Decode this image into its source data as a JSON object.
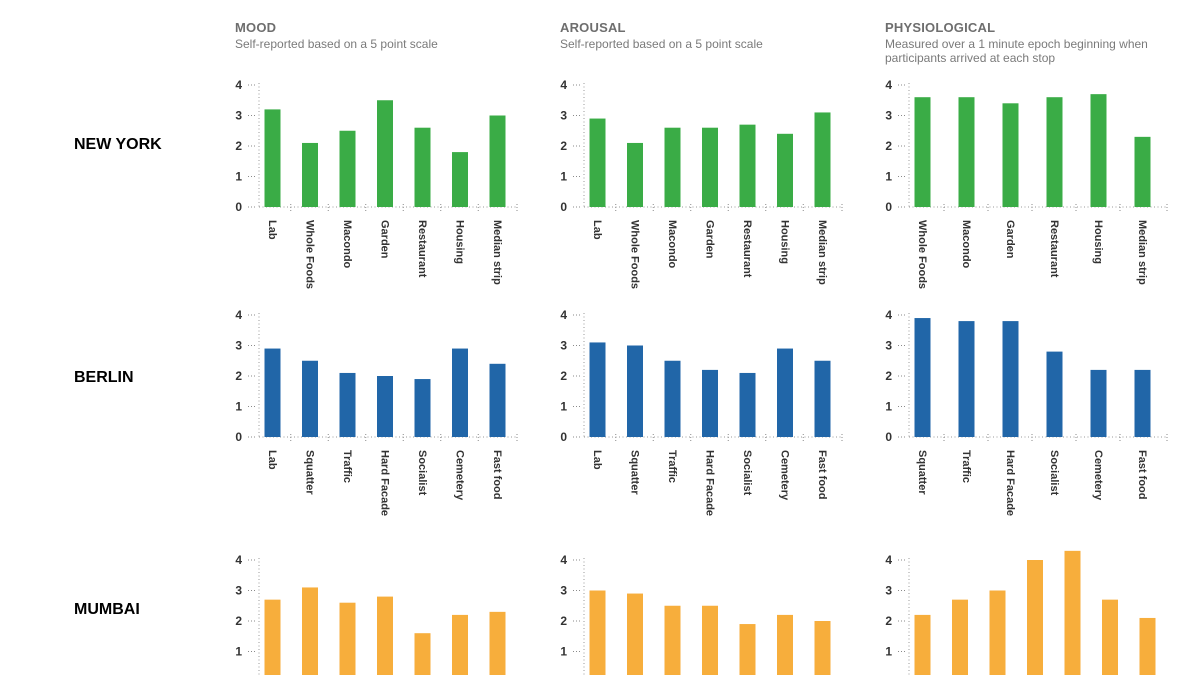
{
  "columns": [
    {
      "title": "MOOD",
      "subtitle": "Self-reported based on a 5 point scale"
    },
    {
      "title": "AROUSAL",
      "subtitle": "Self-reported based on a 5 point scale"
    },
    {
      "title": "PHYSIOLOGICAL",
      "subtitle": "Measured over a 1 minute epoch beginning when participants arrived at each stop"
    }
  ],
  "cities": [
    "NEW YORK",
    "BERLIN",
    "MUMBAI"
  ],
  "colors": {
    "NEW YORK": "#3aac46",
    "BERLIN": "#2166a8",
    "MUMBAI": "#f7ae3c"
  },
  "chart_data": [
    {
      "type": "bar",
      "city": "NEW YORK",
      "column": "MOOD",
      "categories": [
        "Lab",
        "Whole Foods",
        "Macondo",
        "Garden",
        "Restaurant",
        "Housing",
        "Median strip"
      ],
      "values": [
        3.2,
        2.1,
        2.5,
        3.5,
        2.6,
        1.8,
        3.0
      ],
      "yticks": [
        0,
        1,
        2,
        3,
        4
      ],
      "ylim": [
        0,
        4
      ]
    },
    {
      "type": "bar",
      "city": "NEW YORK",
      "column": "AROUSAL",
      "categories": [
        "Lab",
        "Whole Foods",
        "Macondo",
        "Garden",
        "Restaurant",
        "Housing",
        "Median strip"
      ],
      "values": [
        2.9,
        2.1,
        2.6,
        2.6,
        2.7,
        2.4,
        3.1
      ],
      "yticks": [
        0,
        1,
        2,
        3,
        4
      ],
      "ylim": [
        0,
        4
      ]
    },
    {
      "type": "bar",
      "city": "NEW YORK",
      "column": "PHYSIOLOGICAL",
      "categories": [
        "Whole Foods",
        "Macondo",
        "Garden",
        "Restaurant",
        "Housing",
        "Median strip"
      ],
      "values": [
        3.6,
        3.6,
        3.4,
        3.6,
        3.7,
        2.3
      ],
      "yticks": [
        0,
        1,
        2,
        3,
        4
      ],
      "ylim": [
        0,
        4
      ]
    },
    {
      "type": "bar",
      "city": "BERLIN",
      "column": "MOOD",
      "categories": [
        "Lab",
        "Squatter",
        "Traffic",
        "Hard Facade",
        "Socialist",
        "Cemetery",
        "Fast food"
      ],
      "values": [
        2.9,
        2.5,
        2.1,
        2.0,
        1.9,
        2.9,
        2.4
      ],
      "yticks": [
        0,
        1,
        2,
        3,
        4
      ],
      "ylim": [
        0,
        4
      ]
    },
    {
      "type": "bar",
      "city": "BERLIN",
      "column": "AROUSAL",
      "categories": [
        "Lab",
        "Squatter",
        "Traffic",
        "Hard Facade",
        "Socialist",
        "Cemetery",
        "Fast food"
      ],
      "values": [
        3.1,
        3.0,
        2.5,
        2.2,
        2.1,
        2.9,
        2.5
      ],
      "yticks": [
        0,
        1,
        2,
        3,
        4
      ],
      "ylim": [
        0,
        4
      ]
    },
    {
      "type": "bar",
      "city": "BERLIN",
      "column": "PHYSIOLOGICAL",
      "categories": [
        "Squatter",
        "Traffic",
        "Hard Facade",
        "Socialist",
        "Cemetery",
        "Fast food"
      ],
      "values": [
        3.9,
        3.8,
        3.8,
        2.8,
        2.2,
        2.2
      ],
      "yticks": [
        0,
        1,
        2,
        3,
        4
      ],
      "ylim": [
        0,
        4
      ]
    },
    {
      "type": "bar",
      "city": "MUMBAI",
      "column": "MOOD",
      "categories": [
        "",
        "",
        "",
        "",
        "",
        "",
        ""
      ],
      "values": [
        2.7,
        3.1,
        2.6,
        2.8,
        1.6,
        2.2,
        2.3
      ],
      "yticks": [
        1,
        2,
        3,
        4
      ],
      "ylim": [
        0,
        4
      ]
    },
    {
      "type": "bar",
      "city": "MUMBAI",
      "column": "AROUSAL",
      "categories": [
        "",
        "",
        "",
        "",
        "",
        "",
        ""
      ],
      "values": [
        3.0,
        2.9,
        2.5,
        2.5,
        1.9,
        2.2,
        2.0
      ],
      "yticks": [
        1,
        2,
        3,
        4
      ],
      "ylim": [
        0,
        4
      ]
    },
    {
      "type": "bar",
      "city": "MUMBAI",
      "column": "PHYSIOLOGICAL",
      "categories": [
        "",
        "",
        "",
        "",
        "",
        "",
        ""
      ],
      "values": [
        2.2,
        2.7,
        3.0,
        4.0,
        4.3,
        2.7,
        2.1
      ],
      "yticks": [
        1,
        2,
        3,
        4
      ],
      "ylim": [
        0,
        4
      ]
    }
  ]
}
